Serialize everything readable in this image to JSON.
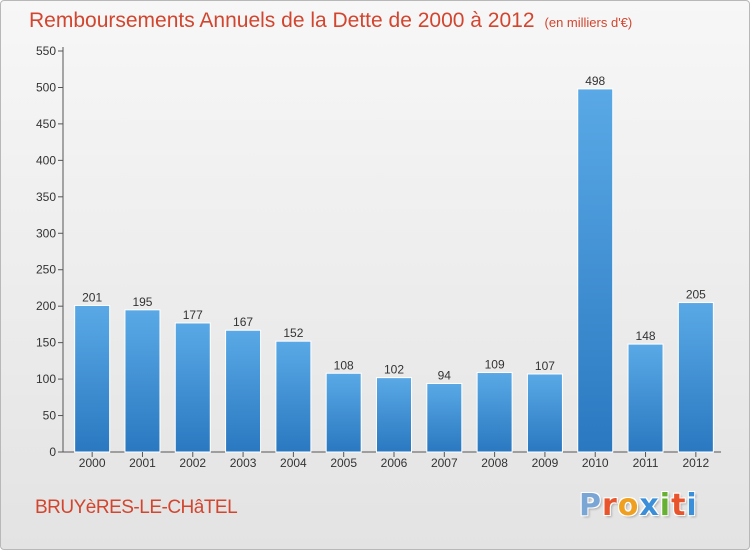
{
  "chart_data": {
    "type": "bar",
    "title": "Remboursements Annuels de la Dette de 2000 à 2012",
    "subtitle": "(en milliers d'€)",
    "categories": [
      "2000",
      "2001",
      "2002",
      "2003",
      "2004",
      "2005",
      "2006",
      "2007",
      "2008",
      "2009",
      "2010",
      "2011",
      "2012"
    ],
    "values": [
      201,
      195,
      177,
      167,
      152,
      108,
      102,
      94,
      109,
      107,
      498,
      148,
      205
    ],
    "ylim": [
      0,
      550
    ],
    "yticks": [
      0,
      50,
      100,
      150,
      200,
      250,
      300,
      350,
      400,
      450,
      500,
      550
    ],
    "grid": false,
    "xlabel": "",
    "ylabel": ""
  },
  "footer": {
    "commune": "BRUYèRES-LE-CHâTEL",
    "logo_letters": [
      "P",
      "r",
      "o",
      "x",
      "i",
      "t",
      "i"
    ]
  },
  "colors": {
    "title": "#d2452e",
    "bar_top": "#5aa9e6",
    "bar_bottom": "#2a78c0",
    "logo": [
      "#7aa6d6",
      "#e8542c",
      "#f0a020",
      "#3b8fd8",
      "#66b032",
      "#e8542c",
      "#3b8fd8"
    ]
  }
}
